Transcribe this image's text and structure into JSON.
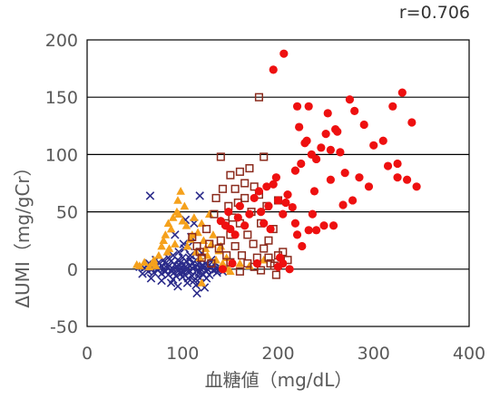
{
  "chart_data": {
    "type": "scatter",
    "xlabel": "血糖値（mg/dL）",
    "ylabel": "ΔUMI（mg/gCr）",
    "annotation": "r=0.706",
    "xlim": [
      0,
      400
    ],
    "ylim": [
      -50,
      200
    ],
    "xticks": [
      0,
      100,
      200,
      300,
      400
    ],
    "yticks": [
      -50,
      0,
      50,
      100,
      150,
      200
    ],
    "grid": "horizontal",
    "legend": "none",
    "series": [
      {
        "marker": "x",
        "color": "#2b2b8a",
        "points": [
          [
            55,
            2
          ],
          [
            58,
            -4
          ],
          [
            60,
            1
          ],
          [
            62,
            3
          ],
          [
            64,
            -2
          ],
          [
            65,
            5
          ],
          [
            66,
            64
          ],
          [
            68,
            0
          ],
          [
            70,
            -3
          ],
          [
            70,
            4
          ],
          [
            72,
            2
          ],
          [
            74,
            -1
          ],
          [
            75,
            6
          ],
          [
            76,
            1
          ],
          [
            78,
            -4
          ],
          [
            78,
            3
          ],
          [
            80,
            0
          ],
          [
            80,
            8
          ],
          [
            82,
            -2
          ],
          [
            82,
            5
          ],
          [
            84,
            1
          ],
          [
            85,
            -5
          ],
          [
            85,
            10
          ],
          [
            86,
            3
          ],
          [
            88,
            -1
          ],
          [
            88,
            7
          ],
          [
            90,
            0
          ],
          [
            90,
            12
          ],
          [
            91,
            -3
          ],
          [
            92,
            4
          ],
          [
            93,
            -6
          ],
          [
            94,
            2
          ],
          [
            95,
            8
          ],
          [
            96,
            -1
          ],
          [
            96,
            15
          ],
          [
            97,
            3
          ],
          [
            98,
            -4
          ],
          [
            98,
            6
          ],
          [
            99,
            1
          ],
          [
            100,
            -2
          ],
          [
            100,
            10
          ],
          [
            101,
            4
          ],
          [
            102,
            -5
          ],
          [
            102,
            18
          ],
          [
            103,
            2
          ],
          [
            104,
            -1
          ],
          [
            104,
            7
          ],
          [
            105,
            0
          ],
          [
            106,
            -8
          ],
          [
            106,
            20
          ],
          [
            107,
            3
          ],
          [
            108,
            -2
          ],
          [
            108,
            12
          ],
          [
            110,
            1
          ],
          [
            110,
            -6
          ],
          [
            111,
            5
          ],
          [
            112,
            -10
          ],
          [
            112,
            40
          ],
          [
            113,
            2
          ],
          [
            114,
            -14
          ],
          [
            114,
            8
          ],
          [
            115,
            -21
          ],
          [
            115,
            -1
          ],
          [
            116,
            4
          ],
          [
            117,
            -3
          ],
          [
            118,
            6
          ],
          [
            118,
            -8
          ],
          [
            119,
            0
          ],
          [
            120,
            3
          ],
          [
            120,
            14
          ],
          [
            121,
            -4
          ],
          [
            122,
            1
          ],
          [
            123,
            -16
          ],
          [
            124,
            5
          ],
          [
            125,
            -2
          ],
          [
            126,
            0
          ],
          [
            127,
            3
          ],
          [
            128,
            -5
          ],
          [
            130,
            2
          ],
          [
            130,
            8
          ],
          [
            132,
            -1
          ],
          [
            133,
            4
          ],
          [
            135,
            0
          ],
          [
            136,
            -3
          ],
          [
            138,
            2
          ],
          [
            140,
            1
          ],
          [
            142,
            -2
          ],
          [
            145,
            0
          ],
          [
            88,
            -12
          ],
          [
            95,
            -15
          ],
          [
            105,
            -12
          ],
          [
            92,
            30
          ],
          [
            101,
            22
          ],
          [
            109,
            28
          ],
          [
            118,
            -12
          ],
          [
            125,
            -8
          ],
          [
            90,
            -9
          ],
          [
            100,
            -7
          ],
          [
            116,
            -6
          ],
          [
            108,
            9
          ],
          [
            118,
            64
          ],
          [
            103,
            43
          ],
          [
            78,
            -10
          ],
          [
            67,
            -8
          ],
          [
            72,
            8
          ]
        ]
      },
      {
        "marker": "triangle",
        "color": "#f5a11c",
        "points": [
          [
            52,
            4
          ],
          [
            55,
            3
          ],
          [
            60,
            6
          ],
          [
            65,
            2
          ],
          [
            68,
            5
          ],
          [
            70,
            8
          ],
          [
            72,
            3
          ],
          [
            75,
            12
          ],
          [
            78,
            20
          ],
          [
            80,
            25
          ],
          [
            82,
            30
          ],
          [
            84,
            15
          ],
          [
            85,
            40
          ],
          [
            86,
            18
          ],
          [
            88,
            35
          ],
          [
            90,
            45
          ],
          [
            92,
            22
          ],
          [
            94,
            50
          ],
          [
            95,
            60
          ],
          [
            96,
            48
          ],
          [
            98,
            68
          ],
          [
            100,
            42
          ],
          [
            102,
            55
          ],
          [
            104,
            38
          ],
          [
            105,
            20
          ],
          [
            108,
            26
          ],
          [
            110,
            30
          ],
          [
            112,
            45
          ],
          [
            114,
            15
          ],
          [
            116,
            32
          ],
          [
            118,
            10
          ],
          [
            120,
            40
          ],
          [
            122,
            25
          ],
          [
            124,
            18
          ],
          [
            126,
            12
          ],
          [
            128,
            48
          ],
          [
            130,
            22
          ],
          [
            132,
            30
          ],
          [
            135,
            8
          ],
          [
            138,
            16
          ],
          [
            140,
            20
          ],
          [
            142,
            5
          ],
          [
            146,
            10
          ],
          [
            148,
            0
          ],
          [
            150,
            -2
          ],
          [
            160,
            5
          ],
          [
            170,
            3
          ],
          [
            185,
            8
          ],
          [
            120,
            -12
          ]
        ]
      },
      {
        "marker": "square",
        "color": "#8b2b1d",
        "points": [
          [
            110,
            28
          ],
          [
            115,
            20
          ],
          [
            118,
            15
          ],
          [
            120,
            10
          ],
          [
            125,
            35
          ],
          [
            128,
            22
          ],
          [
            130,
            5
          ],
          [
            133,
            48
          ],
          [
            135,
            62
          ],
          [
            138,
            18
          ],
          [
            140,
            25
          ],
          [
            140,
            98
          ],
          [
            142,
            70
          ],
          [
            145,
            40
          ],
          [
            146,
            12
          ],
          [
            148,
            55
          ],
          [
            150,
            30
          ],
          [
            150,
            82
          ],
          [
            152,
            45
          ],
          [
            155,
            20
          ],
          [
            155,
            70
          ],
          [
            158,
            58
          ],
          [
            160,
            40
          ],
          [
            160,
            85
          ],
          [
            162,
            12
          ],
          [
            165,
            62
          ],
          [
            165,
            75
          ],
          [
            168,
            30
          ],
          [
            170,
            88
          ],
          [
            172,
            50
          ],
          [
            174,
            22
          ],
          [
            175,
            72
          ],
          [
            178,
            10
          ],
          [
            180,
            65
          ],
          [
            180,
            150
          ],
          [
            182,
            40
          ],
          [
            185,
            18
          ],
          [
            185,
            98
          ],
          [
            188,
            55
          ],
          [
            190,
            25
          ],
          [
            192,
            5
          ],
          [
            195,
            35
          ],
          [
            196,
            3
          ],
          [
            198,
            -5
          ],
          [
            200,
            12
          ],
          [
            200,
            60
          ],
          [
            205,
            15
          ],
          [
            210,
            8
          ],
          [
            160,
            -2
          ],
          [
            168,
            5
          ],
          [
            175,
            2
          ],
          [
            182,
            -1
          ],
          [
            190,
            10
          ],
          [
            150,
            6
          ]
        ]
      },
      {
        "marker": "circle",
        "color": "#ee1010",
        "points": [
          [
            140,
            42
          ],
          [
            142,
            0
          ],
          [
            145,
            38
          ],
          [
            148,
            50
          ],
          [
            150,
            35
          ],
          [
            152,
            5
          ],
          [
            155,
            30
          ],
          [
            158,
            45
          ],
          [
            160,
            55
          ],
          [
            165,
            38
          ],
          [
            170,
            48
          ],
          [
            175,
            62
          ],
          [
            178,
            5
          ],
          [
            180,
            68
          ],
          [
            182,
            50
          ],
          [
            185,
            40
          ],
          [
            188,
            72
          ],
          [
            190,
            55
          ],
          [
            192,
            35
          ],
          [
            195,
            74
          ],
          [
            195,
            174
          ],
          [
            198,
            80
          ],
          [
            200,
            2
          ],
          [
            200,
            60
          ],
          [
            202,
            10
          ],
          [
            205,
            5
          ],
          [
            206,
            188
          ],
          [
            208,
            58
          ],
          [
            210,
            65
          ],
          [
            212,
            0
          ],
          [
            215,
            54
          ],
          [
            218,
            86
          ],
          [
            220,
            142
          ],
          [
            220,
            30
          ],
          [
            222,
            124
          ],
          [
            224,
            92
          ],
          [
            225,
            20
          ],
          [
            228,
            110
          ],
          [
            230,
            112
          ],
          [
            232,
            142
          ],
          [
            235,
            100
          ],
          [
            236,
            48
          ],
          [
            238,
            68
          ],
          [
            240,
            96
          ],
          [
            240,
            34
          ],
          [
            245,
            106
          ],
          [
            248,
            38
          ],
          [
            250,
            118
          ],
          [
            252,
            136
          ],
          [
            255,
            104
          ],
          [
            255,
            78
          ],
          [
            258,
            38
          ],
          [
            260,
            122
          ],
          [
            262,
            120
          ],
          [
            265,
            102
          ],
          [
            268,
            56
          ],
          [
            270,
            84
          ],
          [
            275,
            148
          ],
          [
            278,
            60
          ],
          [
            280,
            138
          ],
          [
            285,
            80
          ],
          [
            290,
            126
          ],
          [
            295,
            72
          ],
          [
            300,
            108
          ],
          [
            310,
            112
          ],
          [
            315,
            90
          ],
          [
            320,
            142
          ],
          [
            325,
            80
          ],
          [
            330,
            154
          ],
          [
            335,
            78
          ],
          [
            340,
            128
          ],
          [
            345,
            72
          ],
          [
            325,
            92
          ],
          [
            205,
            48
          ],
          [
            218,
            40
          ],
          [
            232,
            34
          ]
        ]
      }
    ]
  }
}
